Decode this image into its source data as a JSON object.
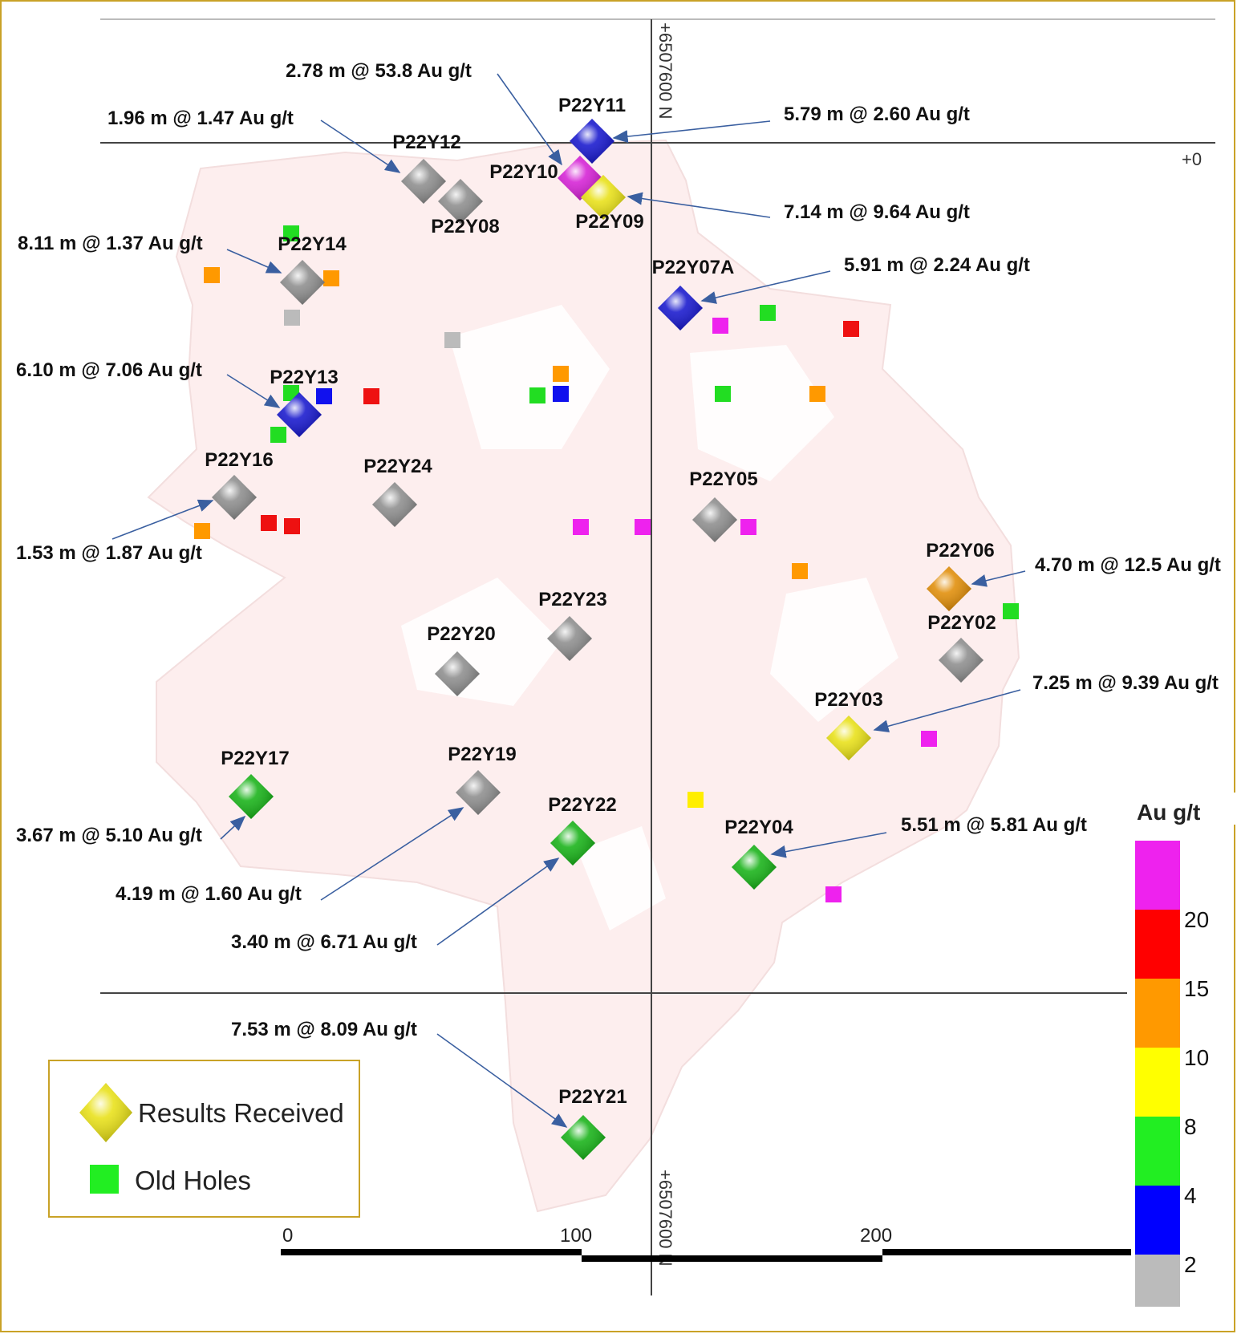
{
  "grid": {
    "northing_label": "+6507600 N",
    "easting_label": "+0"
  },
  "holes": [
    {
      "id": "P22Y11",
      "color": "#1010cc"
    },
    {
      "id": "P22Y12",
      "color": "#8a8a8a"
    },
    {
      "id": "P22Y10",
      "color": "#d41ad4"
    },
    {
      "id": "P22Y08",
      "color": "#8a8a8a"
    },
    {
      "id": "P22Y09",
      "color": "#e8e010"
    },
    {
      "id": "P22Y14",
      "color": "#8a8a8a"
    },
    {
      "id": "P22Y07A",
      "color": "#1010cc"
    },
    {
      "id": "P22Y13",
      "color": "#1010cc"
    },
    {
      "id": "P22Y16",
      "color": "#8a8a8a"
    },
    {
      "id": "P22Y24",
      "color": "#8a8a8a"
    },
    {
      "id": "P22Y05",
      "color": "#8a8a8a"
    },
    {
      "id": "P22Y06",
      "color": "#e08a00"
    },
    {
      "id": "P22Y23",
      "color": "#8a8a8a"
    },
    {
      "id": "P22Y02",
      "color": "#8a8a8a"
    },
    {
      "id": "P22Y20",
      "color": "#8a8a8a"
    },
    {
      "id": "P22Y03",
      "color": "#e8e010"
    },
    {
      "id": "P22Y17",
      "color": "#10b010"
    },
    {
      "id": "P22Y19",
      "color": "#8a8a8a"
    },
    {
      "id": "P22Y22",
      "color": "#10b010"
    },
    {
      "id": "P22Y04",
      "color": "#10b010"
    },
    {
      "id": "P22Y21",
      "color": "#10b010"
    }
  ],
  "annotations": [
    {
      "text": "2.78 m @ 53.8 Au g/t",
      "hole": "P22Y10"
    },
    {
      "text": "1.96 m @ 1.47 Au g/t",
      "hole": "P22Y12"
    },
    {
      "text": "5.79 m @ 2.60 Au g/t",
      "hole": "P22Y11"
    },
    {
      "text": "7.14 m @ 9.64 Au g/t",
      "hole": "P22Y09"
    },
    {
      "text": "8.11 m @ 1.37 Au g/t",
      "hole": "P22Y14"
    },
    {
      "text": "5.91 m @ 2.24 Au g/t",
      "hole": "P22Y07A"
    },
    {
      "text": "6.10 m @ 7.06 Au g/t",
      "hole": "P22Y13"
    },
    {
      "text": "1.53 m @ 1.87 Au g/t",
      "hole": "P22Y16"
    },
    {
      "text": "4.70 m @ 12.5 Au g/t",
      "hole": "P22Y06"
    },
    {
      "text": "7.25 m @ 9.39 Au g/t",
      "hole": "P22Y03"
    },
    {
      "text": "3.67 m @ 5.10 Au g/t",
      "hole": "P22Y17"
    },
    {
      "text": "4.19 m @ 1.60 Au g/t",
      "hole": "P22Y19"
    },
    {
      "text": "5.51 m @ 5.81 Au g/t",
      "hole": "P22Y04"
    },
    {
      "text": "3.40 m @ 6.71 Au g/t",
      "hole": "P22Y22"
    },
    {
      "text": "7.53 m @ 8.09 Au g/t",
      "hole": "P22Y21"
    }
  ],
  "old_holes": [
    {
      "color": "#22dd22"
    },
    {
      "color": "#ff9900"
    },
    {
      "color": "#ff9900"
    },
    {
      "color": "#bbbbbb"
    },
    {
      "color": "#bbbbbb"
    },
    {
      "color": "#ee22ee"
    },
    {
      "color": "#22dd22"
    },
    {
      "color": "#ee1111"
    },
    {
      "color": "#ff9900"
    },
    {
      "color": "#22dd22"
    },
    {
      "color": "#1111ee"
    },
    {
      "color": "#1111ee"
    },
    {
      "color": "#ee1111"
    },
    {
      "color": "#22dd22"
    },
    {
      "color": "#ff9900"
    },
    {
      "color": "#22dd22"
    },
    {
      "color": "#ff9900"
    },
    {
      "color": "#ee1111"
    },
    {
      "color": "#ee1111"
    },
    {
      "color": "#ee22ee"
    },
    {
      "color": "#ee22ee"
    },
    {
      "color": "#ee22ee"
    },
    {
      "color": "#ff9900"
    },
    {
      "color": "#22dd22"
    },
    {
      "color": "#ee22ee"
    },
    {
      "color": "#ffee00"
    },
    {
      "color": "#ee22ee"
    },
    {
      "color": "#22dd22"
    }
  ],
  "scale_bar": {
    "ticks": [
      "0",
      "100",
      "200"
    ]
  },
  "legend": {
    "results_label": "Results Received",
    "old_label": "Old Holes",
    "results_color": "#e8e010",
    "old_color": "#22ee22"
  },
  "colorbar": {
    "title": "Au g/t",
    "ticks": [
      "20",
      "15",
      "10",
      "8",
      "4",
      "2"
    ],
    "bands": [
      "#ee22ee",
      "#ff0000",
      "#ff9900",
      "#ffff00",
      "#22ee22",
      "#0000ff",
      "#bbbbbb"
    ]
  }
}
